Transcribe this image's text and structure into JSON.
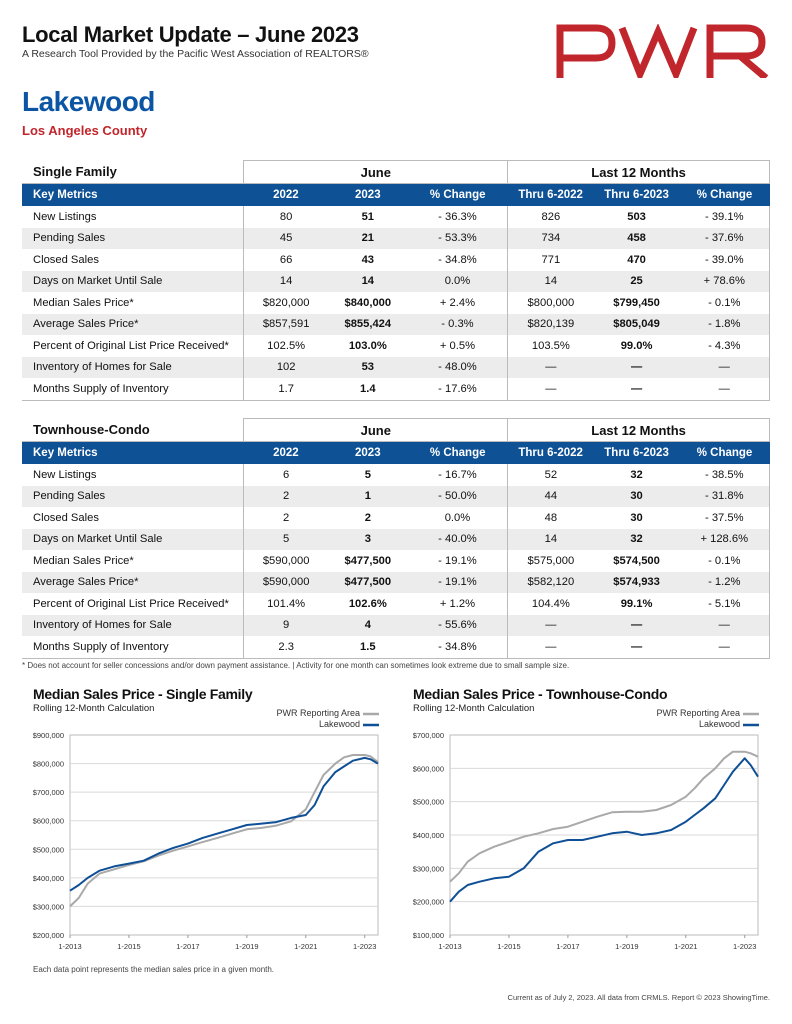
{
  "header": {
    "title": "Local Market Update – June 2023",
    "subtitle": "A Research Tool Provided by the Pacific West Association of REALTORS®",
    "logo_text": "PWR",
    "area": "Lakewood",
    "county": "Los Angeles County",
    "brand_color": "#c0262b",
    "area_color": "#0b55a4"
  },
  "tables": {
    "single_family": {
      "section": "Single Family",
      "group_june": "June",
      "group_12": "Last 12 Months",
      "cols": [
        "Key Metrics",
        "2022",
        "2023",
        "% Change",
        "Thru 6-2022",
        "Thru 6-2023",
        "% Change"
      ],
      "rows": [
        [
          "New Listings",
          "80",
          "51",
          "- 36.3%",
          "826",
          "503",
          "- 39.1%"
        ],
        [
          "Pending Sales",
          "45",
          "21",
          "- 53.3%",
          "734",
          "458",
          "- 37.6%"
        ],
        [
          "Closed Sales",
          "66",
          "43",
          "- 34.8%",
          "771",
          "470",
          "- 39.0%"
        ],
        [
          "Days on Market Until Sale",
          "14",
          "14",
          "0.0%",
          "14",
          "25",
          "+ 78.6%"
        ],
        [
          "Median Sales Price*",
          "$820,000",
          "$840,000",
          "+ 2.4%",
          "$800,000",
          "$799,450",
          "- 0.1%"
        ],
        [
          "Average Sales Price*",
          "$857,591",
          "$855,424",
          "- 0.3%",
          "$820,139",
          "$805,049",
          "- 1.8%"
        ],
        [
          "Percent of Original List Price Received*",
          "102.5%",
          "103.0%",
          "+ 0.5%",
          "103.5%",
          "99.0%",
          "- 4.3%"
        ],
        [
          "Inventory of Homes for Sale",
          "102",
          "53",
          "- 48.0%",
          "—",
          "—",
          "—"
        ],
        [
          "Months Supply of Inventory",
          "1.7",
          "1.4",
          "- 17.6%",
          "—",
          "—",
          "—"
        ]
      ]
    },
    "townhouse_condo": {
      "section": "Townhouse-Condo",
      "group_june": "June",
      "group_12": "Last 12 Months",
      "cols": [
        "Key Metrics",
        "2022",
        "2023",
        "% Change",
        "Thru 6-2022",
        "Thru 6-2023",
        "% Change"
      ],
      "rows": [
        [
          "New Listings",
          "6",
          "5",
          "- 16.7%",
          "52",
          "32",
          "- 38.5%"
        ],
        [
          "Pending Sales",
          "2",
          "1",
          "- 50.0%",
          "44",
          "30",
          "- 31.8%"
        ],
        [
          "Closed Sales",
          "2",
          "2",
          "0.0%",
          "48",
          "30",
          "- 37.5%"
        ],
        [
          "Days on Market Until Sale",
          "5",
          "3",
          "- 40.0%",
          "14",
          "32",
          "+ 128.6%"
        ],
        [
          "Median Sales Price*",
          "$590,000",
          "$477,500",
          "- 19.1%",
          "$575,000",
          "$574,500",
          "- 0.1%"
        ],
        [
          "Average Sales Price*",
          "$590,000",
          "$477,500",
          "- 19.1%",
          "$582,120",
          "$574,933",
          "- 1.2%"
        ],
        [
          "Percent of Original List Price Received*",
          "101.4%",
          "102.6%",
          "+ 1.2%",
          "104.4%",
          "99.1%",
          "- 5.1%"
        ],
        [
          "Inventory of Homes for Sale",
          "9",
          "4",
          "- 55.6%",
          "—",
          "—",
          "—"
        ],
        [
          "Months Supply of Inventory",
          "2.3",
          "1.5",
          "- 34.8%",
          "—",
          "—",
          "—"
        ]
      ]
    }
  },
  "footnote": "* Does not account for seller concessions and/or down payment assistance. | Activity for one month can sometimes look extreme due to small sample size.",
  "chart_data": [
    {
      "type": "line",
      "title": "Median Sales Price - Single Family",
      "subtitle": "Rolling 12-Month Calculation",
      "xticks": [
        "1-2013",
        "1-2015",
        "1-2017",
        "1-2019",
        "1-2021",
        "1-2023"
      ],
      "xlim": [
        2013.0,
        2023.45
      ],
      "ylim": [
        200000,
        900000
      ],
      "yticks": [
        "$200,000",
        "$300,000",
        "$400,000",
        "$500,000",
        "$600,000",
        "$700,000",
        "$800,000",
        "$900,000"
      ],
      "grid": true,
      "legend_position": "top-right",
      "series": [
        {
          "name": "PWR Reporting Area",
          "color": "#a9a9a9",
          "x": [
            2013.0,
            2013.3,
            2013.6,
            2014.0,
            2014.5,
            2015.0,
            2015.5,
            2016.0,
            2016.5,
            2017.0,
            2017.5,
            2018.0,
            2018.5,
            2019.0,
            2019.5,
            2020.0,
            2020.5,
            2021.0,
            2021.3,
            2021.6,
            2022.0,
            2022.3,
            2022.6,
            2023.0,
            2023.2,
            2023.45
          ],
          "y": [
            300000,
            330000,
            380000,
            415000,
            430000,
            445000,
            458000,
            478000,
            495000,
            510000,
            525000,
            540000,
            555000,
            570000,
            575000,
            583000,
            598000,
            640000,
            700000,
            760000,
            800000,
            822000,
            830000,
            830000,
            825000,
            805000
          ]
        },
        {
          "name": "Lakewood",
          "color": "#0f4f96",
          "x": [
            2013.0,
            2013.3,
            2013.6,
            2014.0,
            2014.5,
            2015.0,
            2015.5,
            2016.0,
            2016.5,
            2017.0,
            2017.5,
            2018.0,
            2018.5,
            2019.0,
            2019.5,
            2020.0,
            2020.5,
            2021.0,
            2021.3,
            2021.6,
            2022.0,
            2022.3,
            2022.6,
            2023.0,
            2023.2,
            2023.45
          ],
          "y": [
            355000,
            375000,
            400000,
            425000,
            440000,
            450000,
            460000,
            485000,
            505000,
            520000,
            540000,
            555000,
            570000,
            585000,
            590000,
            595000,
            610000,
            620000,
            655000,
            720000,
            770000,
            790000,
            810000,
            820000,
            815000,
            800000
          ]
        }
      ]
    },
    {
      "type": "line",
      "title": "Median Sales Price - Townhouse-Condo",
      "subtitle": "Rolling 12-Month Calculation",
      "xticks": [
        "1-2013",
        "1-2015",
        "1-2017",
        "1-2019",
        "1-2021",
        "1-2023"
      ],
      "xlim": [
        2013.0,
        2023.45
      ],
      "ylim": [
        100000,
        700000
      ],
      "yticks": [
        "$100,000",
        "$200,000",
        "$300,000",
        "$400,000",
        "$500,000",
        "$600,000",
        "$700,000"
      ],
      "grid": true,
      "legend_position": "top-right",
      "series": [
        {
          "name": "PWR Reporting Area",
          "color": "#a9a9a9",
          "x": [
            2013.0,
            2013.3,
            2013.6,
            2014.0,
            2014.5,
            2015.0,
            2015.5,
            2016.0,
            2016.5,
            2017.0,
            2017.5,
            2018.0,
            2018.5,
            2019.0,
            2019.5,
            2020.0,
            2020.5,
            2021.0,
            2021.3,
            2021.6,
            2022.0,
            2022.3,
            2022.6,
            2023.0,
            2023.2,
            2023.45
          ],
          "y": [
            260000,
            285000,
            320000,
            345000,
            365000,
            380000,
            395000,
            405000,
            418000,
            425000,
            440000,
            455000,
            468000,
            470000,
            470000,
            475000,
            490000,
            515000,
            540000,
            570000,
            600000,
            630000,
            650000,
            650000,
            645000,
            635000
          ]
        },
        {
          "name": "Lakewood",
          "color": "#0f4f96",
          "x": [
            2013.0,
            2013.3,
            2013.6,
            2014.0,
            2014.5,
            2015.0,
            2015.5,
            2016.0,
            2016.5,
            2017.0,
            2017.5,
            2018.0,
            2018.5,
            2019.0,
            2019.5,
            2020.0,
            2020.5,
            2021.0,
            2021.3,
            2021.6,
            2022.0,
            2022.3,
            2022.6,
            2023.0,
            2023.2,
            2023.45
          ],
          "y": [
            200000,
            230000,
            250000,
            260000,
            270000,
            275000,
            300000,
            350000,
            375000,
            385000,
            385000,
            395000,
            405000,
            410000,
            400000,
            405000,
            415000,
            440000,
            460000,
            480000,
            510000,
            550000,
            590000,
            630000,
            610000,
            575000
          ]
        }
      ]
    }
  ],
  "footer": {
    "chart_note": "Each data point represents the median sales price in a given month.",
    "source": "Current as of July 2, 2023. All data from CRMLS. Report © 2023 ShowingTime."
  }
}
